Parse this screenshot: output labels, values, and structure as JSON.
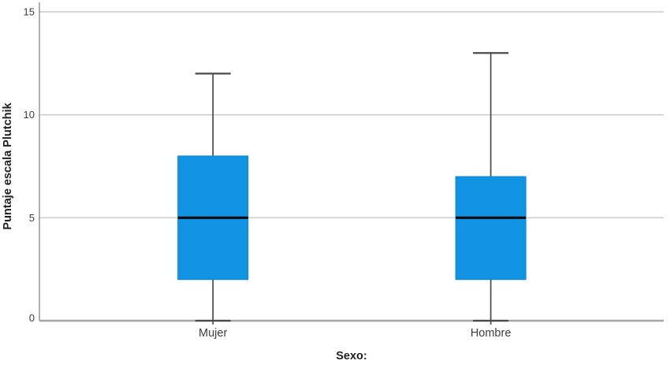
{
  "chart_data": {
    "type": "boxplot",
    "title": "",
    "xlabel": "Sexo:",
    "ylabel": "Puntaje escala Plutchik",
    "ylim": [
      0,
      15
    ],
    "yticks": [
      0,
      5,
      10,
      15
    ],
    "grid": "horizontal gridlines at ticks, no top/right border",
    "legend_position": "none",
    "categories": [
      "Mujer",
      "Hombre"
    ],
    "series": [
      {
        "name": "Mujer",
        "min": 0,
        "q1": 2,
        "median": 5,
        "q3": 8,
        "max": 12
      },
      {
        "name": "Hombre",
        "min": 0,
        "q1": 2,
        "median": 5,
        "q3": 7,
        "max": 13
      }
    ],
    "colors": {
      "box_fill": "#0f93e2",
      "box_edge": "#0c86d4",
      "median": "#0a0a0a",
      "whisker": "#4a4a4a",
      "grid": "#c9c9c9",
      "axis_x": "#a6a6a6",
      "axis_y": "#8f8f8f",
      "tick": "#555555"
    }
  }
}
